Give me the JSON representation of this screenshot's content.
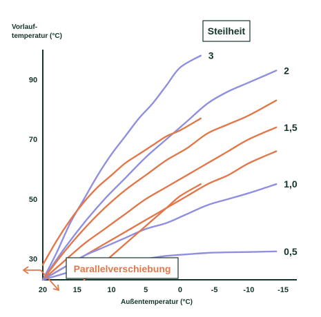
{
  "chart_data": {
    "type": "line",
    "title": "",
    "ylabel_line1": "Vorlauf-",
    "ylabel_line2": "temperatur (°C)",
    "xlabel": "Außentemperatur (°C)",
    "xlim": [
      20,
      -17
    ],
    "ylim": [
      23,
      100
    ],
    "x_ticks": [
      20,
      15,
      10,
      5,
      0,
      -5,
      -10,
      -15
    ],
    "x_tick_labels": [
      "20",
      "15",
      "10",
      "5",
      "0",
      "-5",
      "-10",
      "-15"
    ],
    "y_ticks": [
      30,
      50,
      70,
      90
    ],
    "y_tick_labels": [
      "30",
      "50",
      "70",
      "90"
    ],
    "steilheit_label": "Steilheit",
    "parallel_label": "Parallelverschiebung",
    "colors": {
      "blue": "#8f8ee0",
      "orange": "#e2774a",
      "axis": "#14332b",
      "text": "#14332b"
    },
    "series": [
      {
        "name": "3",
        "color": "#8f8ee0",
        "x": [
          20,
          18,
          16,
          14,
          12,
          10,
          8,
          6,
          4,
          2,
          0,
          -3
        ],
        "y": [
          23,
          32,
          42,
          50,
          58,
          65,
          71,
          77,
          82,
          88,
          94,
          98
        ]
      },
      {
        "name": "2",
        "color": "#8f8ee0",
        "x": [
          20,
          17,
          14,
          11,
          8,
          5,
          2,
          -1,
          -4,
          -7,
          -10,
          -14
        ],
        "y": [
          23,
          33,
          42,
          50,
          57,
          64,
          70,
          76,
          82,
          86,
          89,
          93
        ]
      },
      {
        "name": "",
        "color": "#e2774a",
        "x": [
          20,
          17,
          14,
          11,
          8,
          5,
          2,
          -1,
          -4,
          -7,
          -10,
          -14
        ],
        "y": [
          23,
          32,
          40,
          47,
          53,
          58,
          63,
          67,
          72,
          75,
          78,
          83
        ]
      },
      {
        "name": "1,5",
        "color": "#e2774a",
        "x": [
          20,
          17,
          14,
          11,
          8,
          5,
          2,
          -1,
          -4,
          -7,
          -10,
          -14
        ],
        "y": [
          23,
          29,
          35,
          40,
          45,
          50,
          54,
          58,
          62,
          66,
          70,
          74
        ]
      },
      {
        "name": "",
        "color": "#e2774a",
        "x": [
          20,
          17,
          14,
          11,
          8,
          5,
          2,
          -1,
          -4,
          -7,
          -10,
          -14
        ],
        "y": [
          23,
          27,
          31,
          35,
          39,
          43,
          47,
          51,
          55,
          58,
          62,
          66
        ]
      },
      {
        "name": "1,0",
        "color": "#8f8ee0",
        "x": [
          20,
          17,
          14,
          11,
          8,
          5,
          2,
          -1,
          -4,
          -7,
          -10,
          -14
        ],
        "y": [
          23,
          27,
          31,
          34,
          37,
          40,
          42,
          45,
          48,
          50,
          52,
          55
        ]
      },
      {
        "name": "0,5",
        "color": "#8f8ee0",
        "x": [
          20,
          17,
          14,
          11,
          8,
          5,
          2,
          -1,
          -4,
          -7,
          -10,
          -14
        ],
        "y": [
          23,
          25,
          27,
          28,
          29,
          30,
          31,
          31.5,
          32,
          32.2,
          32.3,
          32.5
        ]
      },
      {
        "name": "",
        "color": "#e2774a",
        "x": [
          20,
          18,
          16,
          14,
          12,
          10,
          8,
          6,
          4,
          2,
          0,
          -3
        ],
        "y": [
          28,
          36,
          43,
          49,
          54,
          58,
          62,
          65,
          68,
          71,
          73,
          77
        ]
      },
      {
        "name": "",
        "color": "#e2774a",
        "x": [
          14,
          12,
          10,
          8,
          6,
          4,
          2,
          0,
          -3
        ],
        "y": [
          23,
          27,
          31,
          35,
          39,
          43,
          47,
          51,
          55
        ]
      }
    ]
  }
}
